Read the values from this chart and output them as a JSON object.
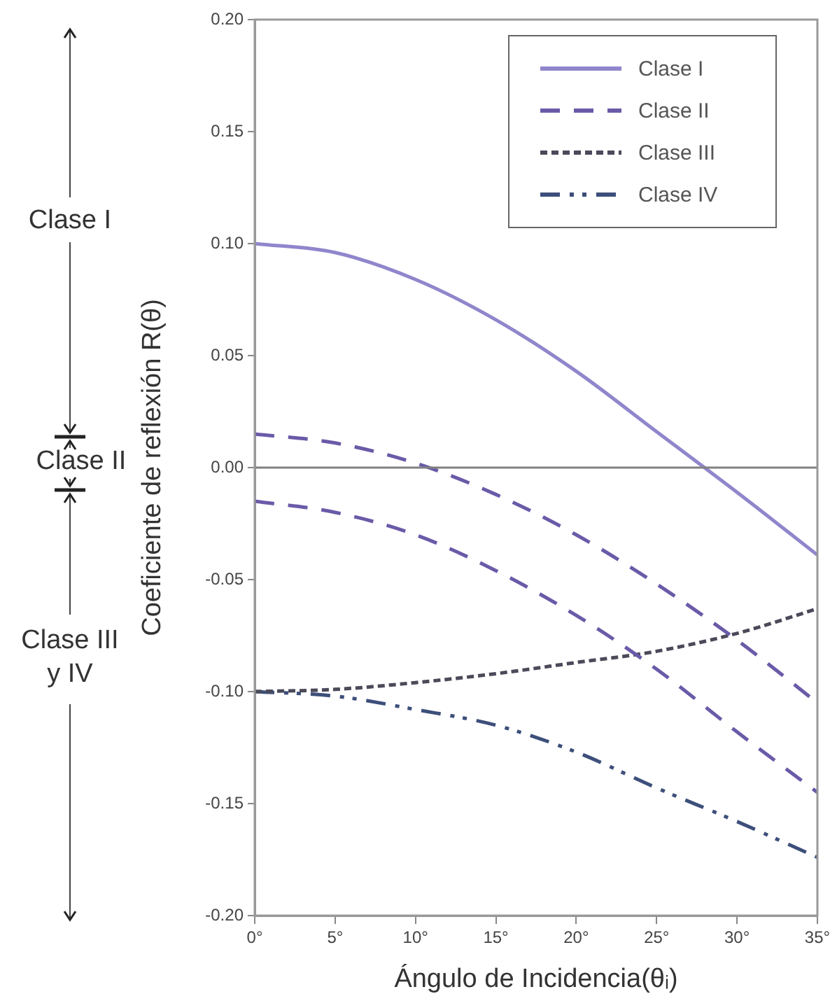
{
  "chart_data": {
    "type": "line",
    "xlabel": "Ángulo de Incidencia(θᵢ)",
    "ylabel": "Coeficiente de reflexión R(θ)",
    "x": [
      0,
      5,
      10,
      15,
      20,
      25,
      30,
      35
    ],
    "series": [
      {
        "name": "Clase I",
        "color": "#8f86cc",
        "line_style": "solid",
        "values": [
          0.1,
          0.096,
          0.084,
          0.066,
          0.043,
          0.016,
          -0.011,
          -0.039
        ]
      },
      {
        "name": "Clase II",
        "color": "#6a5aa8",
        "line_style": "dashed",
        "values": [
          0.015,
          0.011,
          0.002,
          -0.012,
          -0.03,
          -0.052,
          -0.077,
          -0.105
        ]
      },
      {
        "color": "#6a5aa8",
        "line_style": "dashed",
        "values": [
          -0.015,
          -0.02,
          -0.03,
          -0.046,
          -0.066,
          -0.09,
          -0.118,
          -0.145
        ]
      },
      {
        "name": "Clase III",
        "color": "#4a4a5a",
        "line_style": "dotted",
        "values": [
          -0.1,
          -0.099,
          -0.096,
          -0.092,
          -0.087,
          -0.082,
          -0.074,
          -0.063
        ]
      },
      {
        "name": "Clase IV",
        "color": "#3d4f7a",
        "line_style": "dashdot",
        "values": [
          -0.1,
          -0.102,
          -0.108,
          -0.115,
          -0.127,
          -0.143,
          -0.158,
          -0.174
        ]
      }
    ],
    "xlim": [
      0,
      35
    ],
    "xticks": [
      {
        "value": 0,
        "label": "0°"
      },
      {
        "value": 5,
        "label": "5°"
      },
      {
        "value": 10,
        "label": "10°"
      },
      {
        "value": 15,
        "label": "15°"
      },
      {
        "value": 20,
        "label": "20°"
      },
      {
        "value": 25,
        "label": "25°"
      },
      {
        "value": 30,
        "label": "30°"
      },
      {
        "value": 35,
        "label": "35°"
      }
    ],
    "ylim": [
      -0.2,
      0.2
    ],
    "yticks": [
      {
        "value": -0.2,
        "label": "-0.20"
      },
      {
        "value": -0.15,
        "label": "-0.15"
      },
      {
        "value": -0.1,
        "label": "-0.10"
      },
      {
        "value": -0.05,
        "label": "-0.05"
      },
      {
        "value": 0,
        "label": "0.00"
      },
      {
        "value": 0.05,
        "label": "0.05"
      },
      {
        "value": 0.1,
        "label": "0.10"
      },
      {
        "value": 0.15,
        "label": "0.15"
      },
      {
        "value": 0.2,
        "label": "0.20"
      }
    ],
    "ref_lines": [
      {
        "axis": "y",
        "value": 0,
        "color": "#808080"
      }
    ],
    "annotations": [
      "Clase I",
      "Clase II",
      "Clase III y IV"
    ],
    "legend": "top right",
    "marker": "none"
  }
}
